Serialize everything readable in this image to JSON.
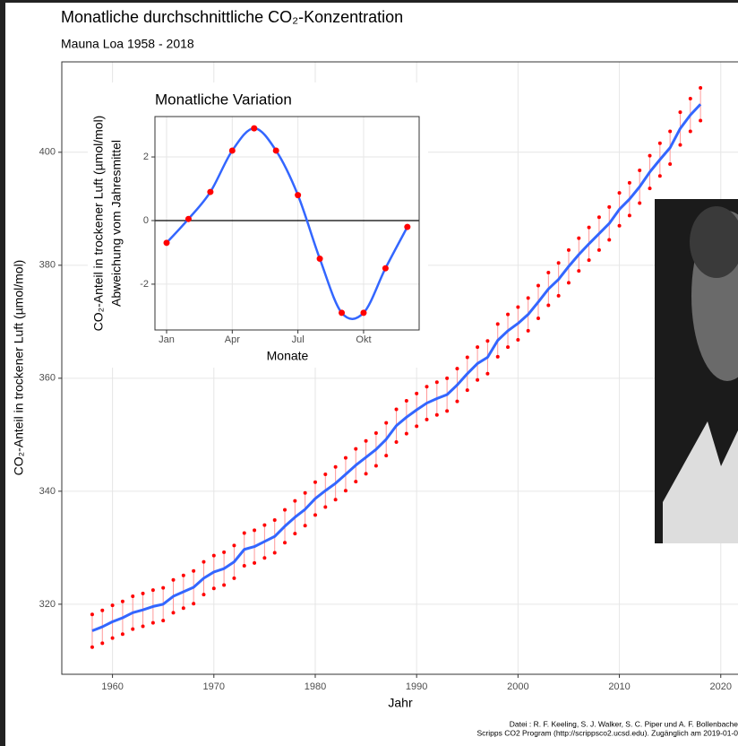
{
  "chart_data": [
    {
      "type": "line",
      "title": "Monatliche durchschnittliche CO₂-Konzentration",
      "subtitle": "Mauna Loa 1958 - 2018",
      "x_label": "Jahr",
      "y_label": "CO₂-Anteil in trockener Luft (µmol/mol)",
      "source": [
        "Datei : R. F. Keeling, S. J. Walker, S. C. Piper und A. F. Bollenbache",
        "Scripps CO2 Program (http://scrippsco2.ucsd.edu). Zugänglich am 2019-01-0"
      ],
      "grid": true,
      "xlim": [
        1955,
        2021.7
      ],
      "ylim": [
        307.6,
        416
      ],
      "xticks": [
        1960,
        1970,
        1980,
        1990,
        2000,
        2010,
        2020
      ],
      "yticks": [
        320,
        340,
        360,
        380,
        400
      ],
      "x": [
        1958,
        1959,
        1960,
        1961,
        1962,
        1963,
        1964,
        1965,
        1966,
        1967,
        1968,
        1969,
        1970,
        1971,
        1972,
        1973,
        1974,
        1975,
        1976,
        1977,
        1978,
        1979,
        1980,
        1981,
        1982,
        1983,
        1984,
        1985,
        1986,
        1987,
        1988,
        1989,
        1990,
        1991,
        1992,
        1993,
        1994,
        1995,
        1996,
        1997,
        1998,
        1999,
        2000,
        2001,
        2002,
        2003,
        2004,
        2005,
        2006,
        2007,
        2008,
        2009,
        2010,
        2011,
        2012,
        2013,
        2014,
        2015,
        2016,
        2017,
        2018
      ],
      "series": [
        {
          "style": "line",
          "color": "#3366ff",
          "values": [
            315.3,
            316.0,
            316.9,
            317.6,
            318.5,
            319.0,
            319.6,
            320.0,
            321.4,
            322.2,
            323.0,
            324.6,
            325.7,
            326.3,
            327.5,
            329.7,
            330.2,
            331.1,
            332.0,
            333.8,
            335.4,
            336.8,
            338.7,
            340.1,
            341.4,
            343.0,
            344.6,
            346.0,
            347.4,
            349.2,
            351.6,
            353.1,
            354.4,
            355.6,
            356.4,
            357.1,
            358.8,
            360.8,
            362.6,
            363.7,
            366.7,
            368.4,
            369.7,
            371.3,
            373.5,
            375.8,
            377.5,
            379.8,
            381.9,
            383.8,
            385.6,
            387.4,
            389.9,
            391.7,
            393.9,
            396.5,
            398.7,
            400.8,
            404.2,
            406.6,
            408.5
          ]
        },
        {
          "style": "points",
          "color": "#ff0000",
          "values": [
            318.2,
            318.9,
            319.8,
            320.5,
            321.4,
            321.9,
            322.5,
            322.9,
            324.3,
            325.1,
            325.9,
            327.5,
            328.6,
            329.2,
            330.4,
            332.6,
            333.1,
            334.0,
            334.9,
            336.7,
            338.3,
            339.7,
            341.6,
            343.0,
            344.3,
            345.9,
            347.5,
            348.9,
            350.3,
            352.1,
            354.5,
            356.0,
            357.3,
            358.5,
            359.3,
            360.0,
            361.7,
            363.7,
            365.5,
            366.6,
            369.6,
            371.3,
            372.6,
            374.2,
            376.4,
            378.7,
            380.4,
            382.7,
            384.8,
            386.7,
            388.5,
            390.3,
            392.8,
            394.6,
            396.8,
            399.4,
            401.6,
            403.7,
            407.1,
            409.5,
            411.4
          ]
        },
        {
          "style": "points",
          "color": "#ff0000",
          "values": [
            312.4,
            313.1,
            314.0,
            314.7,
            315.6,
            316.1,
            316.7,
            317.1,
            318.5,
            319.3,
            320.1,
            321.7,
            322.8,
            323.4,
            324.6,
            326.8,
            327.3,
            328.2,
            329.1,
            330.9,
            332.5,
            333.9,
            335.8,
            337.2,
            338.5,
            340.1,
            341.7,
            343.1,
            344.5,
            346.3,
            348.7,
            350.2,
            351.5,
            352.7,
            353.5,
            354.2,
            355.9,
            357.9,
            359.7,
            360.8,
            363.8,
            365.5,
            366.8,
            368.4,
            370.6,
            372.9,
            374.6,
            376.9,
            379.0,
            380.9,
            382.7,
            384.5,
            387.0,
            388.8,
            391.0,
            393.6,
            395.8,
            397.9,
            401.3,
            403.7,
            405.6
          ]
        }
      ]
    },
    {
      "type": "line",
      "title": "Monatliche Variation",
      "x_label": "Monate",
      "y_label": [
        "CO₂-Anteil in trockener Luft (µmol/mol)",
        "Abweichung vom Jahresmittel"
      ],
      "grid": true,
      "ylim": [
        -3.44,
        3.27
      ],
      "yticks": [
        -2,
        0,
        2
      ],
      "hline": 0,
      "categories": [
        "Jan",
        null,
        null,
        "Apr",
        null,
        null,
        "Jul",
        null,
        null,
        "Okt",
        null,
        null
      ],
      "values": [
        -0.7,
        0.05,
        0.9,
        2.2,
        2.9,
        2.2,
        0.8,
        -1.2,
        -2.9,
        -2.9,
        -1.5,
        -0.2
      ],
      "color": "#ff0000",
      "line_color": "#3366ff"
    }
  ]
}
